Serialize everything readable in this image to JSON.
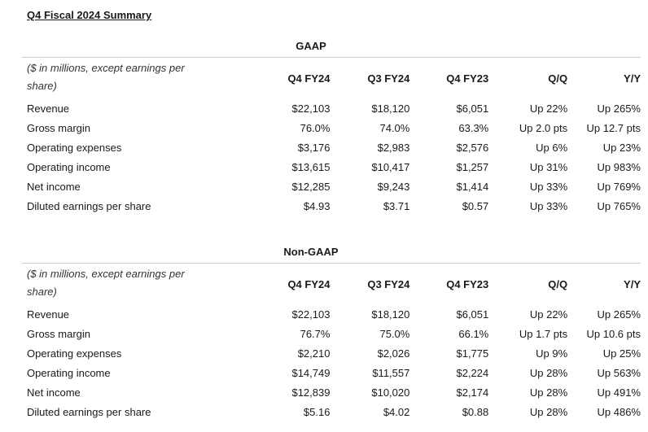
{
  "title": "Q4 Fiscal 2024 Summary",
  "sections": [
    {
      "label": "GAAP",
      "note": "($ in millions, except earnings per share)",
      "columns": [
        "Q4 FY24",
        "Q3 FY24",
        "Q4 FY23",
        "Q/Q",
        "Y/Y"
      ],
      "rows": [
        [
          "Revenue",
          "$22,103",
          "$18,120",
          "$6,051",
          "Up 22%",
          "Up 265%"
        ],
        [
          "Gross margin",
          "76.0%",
          "74.0%",
          "63.3%",
          "Up 2.0 pts",
          "Up 12.7 pts"
        ],
        [
          "Operating expenses",
          "$3,176",
          "$2,983",
          "$2,576",
          "Up 6%",
          "Up 23%"
        ],
        [
          "Operating income",
          "$13,615",
          "$10,417",
          "$1,257",
          "Up 31%",
          "Up 983%"
        ],
        [
          "Net income",
          "$12,285",
          "$9,243",
          "$1,414",
          "Up 33%",
          "Up 769%"
        ],
        [
          "Diluted earnings per share",
          "$4.93",
          "$3.71",
          "$0.57",
          "Up 33%",
          "Up 765%"
        ]
      ]
    },
    {
      "label": "Non-GAAP",
      "note": "($ in millions, except earnings per share)",
      "columns": [
        "Q4 FY24",
        "Q3 FY24",
        "Q4 FY23",
        "Q/Q",
        "Y/Y"
      ],
      "rows": [
        [
          "Revenue",
          "$22,103",
          "$18,120",
          "$6,051",
          "Up 22%",
          "Up 265%"
        ],
        [
          "Gross margin",
          "76.7%",
          "75.0%",
          "66.1%",
          "Up 1.7 pts",
          "Up 10.6 pts"
        ],
        [
          "Operating expenses",
          "$2,210",
          "$2,026",
          "$1,775",
          "Up 9%",
          "Up 25%"
        ],
        [
          "Operating income",
          "$14,749",
          "$11,557",
          "$2,224",
          "Up 28%",
          "Up 563%"
        ],
        [
          "Net income",
          "$12,839",
          "$10,020",
          "$2,174",
          "Up 28%",
          "Up 491%"
        ],
        [
          "Diluted earnings per share",
          "$5.16",
          "$4.02",
          "$0.88",
          "Up 28%",
          "Up 486%"
        ]
      ]
    }
  ]
}
